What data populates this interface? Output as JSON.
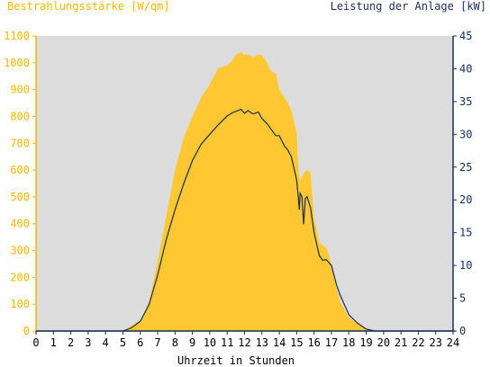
{
  "chart_data": {
    "type": "area",
    "xlabel": "Uhrzeit in Stunden",
    "ylabel_left": "Bestrahlungsstärke [W/qm]",
    "ylabel_right": "Leistung der Anlage [kW]",
    "x_range": [
      0,
      24
    ],
    "y_left_range": [
      0,
      1100
    ],
    "y_right_range": [
      0,
      45
    ],
    "x_ticks": [
      0,
      1,
      2,
      3,
      4,
      5,
      6,
      7,
      8,
      9,
      10,
      11,
      12,
      13,
      14,
      15,
      16,
      17,
      18,
      19,
      20,
      21,
      22,
      23,
      24
    ],
    "y_left_ticks": [
      0,
      100,
      200,
      300,
      400,
      500,
      600,
      700,
      800,
      900,
      1000,
      1100
    ],
    "y_right_ticks": [
      0,
      5,
      10,
      15,
      20,
      25,
      30,
      35,
      40,
      45
    ],
    "grid": false,
    "background_color": "#dcdcdc",
    "series": [
      {
        "name": "Bestrahlungsstärke",
        "axis": "left",
        "color": "#ffc832",
        "x": [
          0,
          5,
          5.5,
          6,
          6.5,
          7,
          7.5,
          8,
          8.5,
          9,
          9.5,
          10,
          10.5,
          11,
          11.3,
          11.5,
          11.8,
          12,
          12.2,
          12.5,
          12.8,
          13,
          13.3,
          13.5,
          13.8,
          14,
          14.3,
          14.5,
          14.7,
          15,
          15.1,
          15.2,
          15.4,
          15.6,
          15.8,
          16,
          16.3,
          16.5,
          16.7,
          17,
          17.3,
          17.5,
          18,
          18.5,
          19,
          19.5,
          20,
          20.5,
          24
        ],
        "values": [
          0,
          0,
          20,
          40,
          110,
          260,
          430,
          600,
          720,
          800,
          870,
          920,
          980,
          990,
          1010,
          1030,
          1040,
          1030,
          1030,
          1020,
          1030,
          1030,
          1000,
          970,
          960,
          900,
          870,
          850,
          820,
          740,
          600,
          560,
          590,
          600,
          590,
          420,
          330,
          320,
          310,
          250,
          160,
          110,
          50,
          30,
          5,
          0,
          0,
          0,
          0
        ]
      },
      {
        "name": "Leistung der Anlage",
        "axis": "right",
        "color": "#1a2e5c",
        "x": [
          0,
          5,
          5.5,
          6,
          6.5,
          7,
          7.5,
          8,
          8.5,
          9,
          9.5,
          10,
          10.5,
          11,
          11.3,
          11.5,
          11.8,
          12,
          12.2,
          12.5,
          12.8,
          13,
          13.3,
          13.5,
          13.8,
          14,
          14.3,
          14.5,
          14.7,
          15,
          15.1,
          15.15,
          15.2,
          15.3,
          15.4,
          15.5,
          15.6,
          15.8,
          16,
          16.3,
          16.5,
          16.7,
          17,
          17.3,
          17.5,
          18,
          18.5,
          19,
          19.5,
          20,
          20.5,
          24
        ],
        "values": [
          0,
          0,
          0.5,
          1.5,
          4,
          8.5,
          14,
          18.5,
          22.5,
          26,
          28.5,
          30,
          31.5,
          32.8,
          33.3,
          33.5,
          33.8,
          33.2,
          33.6,
          33.1,
          33.4,
          32.4,
          31.6,
          30.9,
          29.8,
          29.8,
          28.2,
          27.6,
          26.5,
          23,
          20.2,
          18.5,
          21,
          20.5,
          16.3,
          20.2,
          20.5,
          18.8,
          15,
          11.5,
          10.8,
          10.9,
          10,
          7,
          5.5,
          2.5,
          1.2,
          0.3,
          0,
          0,
          0,
          0
        ]
      }
    ]
  }
}
